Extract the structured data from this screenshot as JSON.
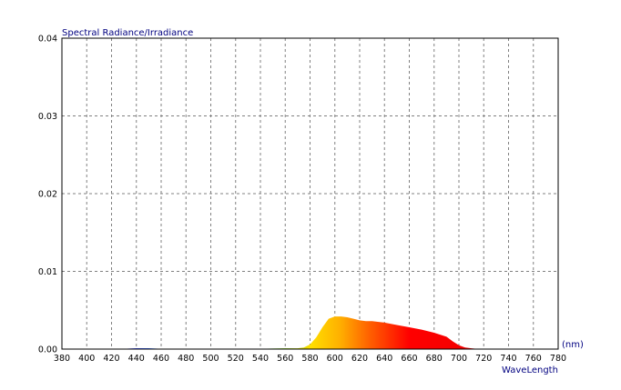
{
  "chart_data": {
    "type": "area",
    "title": "Spectral Radiance/Irradiance",
    "ylabel": "Spectral Radiance/Irradiance",
    "xlabel": "WaveLength",
    "xunit": "(nm)",
    "xlim": [
      380,
      780
    ],
    "ylim": [
      0,
      0.04
    ],
    "x_ticks": [
      "380",
      "400",
      "420",
      "440",
      "460",
      "480",
      "500",
      "520",
      "540",
      "560",
      "580",
      "600",
      "620",
      "640",
      "660",
      "680",
      "700",
      "720",
      "740",
      "760",
      "780"
    ],
    "y_ticks": [
      "0.00",
      "0.01",
      "0.02",
      "0.03",
      "0.04"
    ],
    "grid": true,
    "fill": "wavelength-color",
    "x": [
      380,
      390,
      400,
      410,
      420,
      430,
      440,
      450,
      460,
      470,
      480,
      490,
      500,
      510,
      520,
      530,
      540,
      550,
      560,
      570,
      575,
      580,
      585,
      590,
      595,
      600,
      605,
      610,
      615,
      620,
      625,
      630,
      640,
      650,
      660,
      670,
      680,
      690,
      695,
      700,
      705,
      710,
      715,
      720,
      730,
      740,
      750,
      760,
      770,
      780
    ],
    "values": [
      0,
      0,
      0,
      0,
      0,
      5e-05,
      0.0001,
      0.0001,
      5e-05,
      0,
      0,
      0,
      0,
      0,
      0,
      3e-05,
      5e-05,
      8e-05,
      0.0001,
      0.0001,
      0.0002,
      0.0006,
      0.0015,
      0.0028,
      0.0039,
      0.0042,
      0.0042,
      0.0041,
      0.0039,
      0.0037,
      0.0036,
      0.0036,
      0.0034,
      0.0031,
      0.0028,
      0.0025,
      0.0021,
      0.0016,
      0.001,
      0.0005,
      0.0002,
      0.0001,
      3e-05,
      0,
      0,
      0,
      0,
      0,
      0,
      0
    ]
  }
}
